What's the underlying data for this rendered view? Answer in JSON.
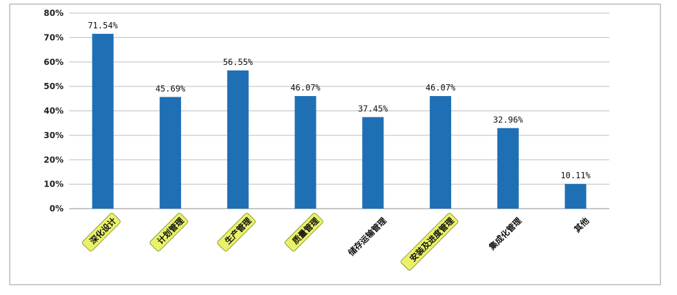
{
  "chart_data": {
    "type": "bar",
    "categories": [
      "深化设计",
      "计划管理",
      "生产管理",
      "质量管理",
      "储存运输管理",
      "安装及进度管理",
      "集成化管理",
      "其他"
    ],
    "values": [
      71.54,
      45.69,
      56.55,
      46.07,
      37.45,
      46.07,
      32.96,
      10.11
    ],
    "data_labels": [
      "71.54%",
      "45.69%",
      "56.55%",
      "46.07%",
      "37.45%",
      "46.07%",
      "32.96%",
      "10.11%"
    ],
    "highlighted": [
      true,
      true,
      true,
      true,
      false,
      true,
      false,
      false
    ],
    "ylim": [
      0,
      80
    ],
    "y_ticks": [
      "0%",
      "10%",
      "20%",
      "30%",
      "40%",
      "50%",
      "60%",
      "70%",
      "80%"
    ],
    "grid": true,
    "legend": "none",
    "colors": {
      "bar": "#1f6fb5",
      "highlight_fill": "#e9f26a",
      "highlight_stroke": "#8a9a2a",
      "grid": "#bdbdbd",
      "frame": "#9a9a9a"
    }
  }
}
